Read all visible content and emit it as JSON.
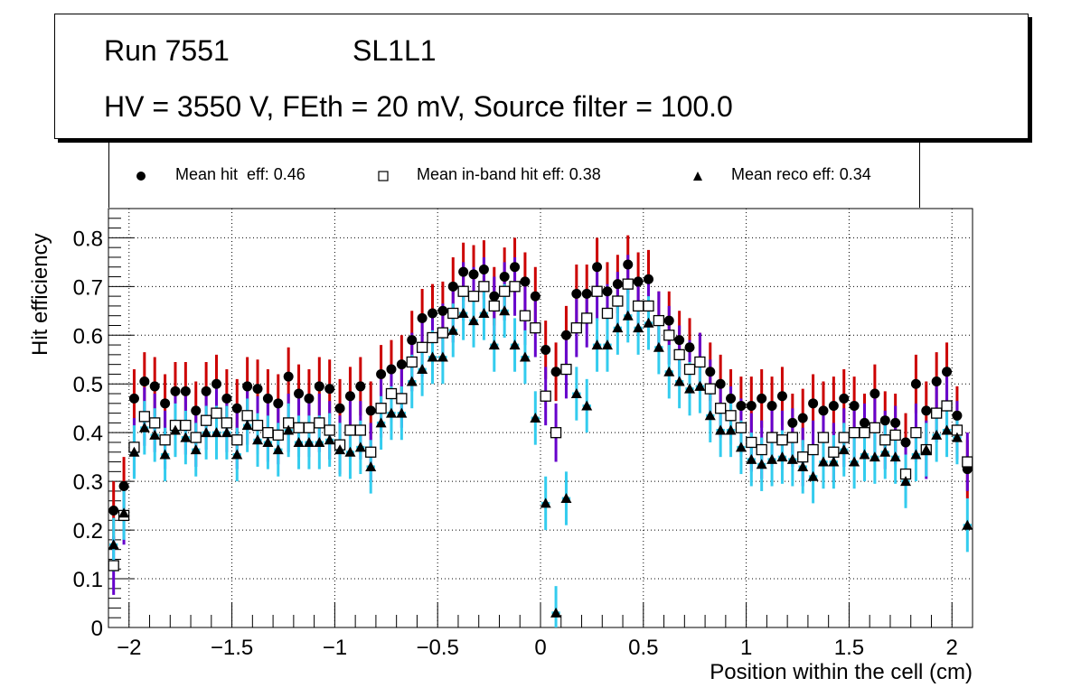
{
  "title": {
    "run": "Run 7551",
    "layer": "SL1L1",
    "conditions": "HV = 3550 V, FEth = 20 mV, Source filter = 100.0"
  },
  "legend": [
    {
      "marker": "filled-circle",
      "label": "Mean hit  eff: 0.46"
    },
    {
      "marker": "open-square",
      "label": "Mean in-band hit eff: 0.38"
    },
    {
      "marker": "filled-triangle",
      "label": "Mean reco eff: 0.34"
    }
  ],
  "chart_data": {
    "type": "scatter",
    "title": "Run 7551 SL1L1 — HV = 3550 V, FEth = 20 mV, Source filter = 100.0",
    "xlabel": "Position within the cell (cm)",
    "ylabel": "Hit efficiency",
    "xlim": [
      -2.1,
      2.1
    ],
    "ylim": [
      0,
      0.86
    ],
    "grid": true,
    "legend_position": "top",
    "x_ticks": [
      "-2",
      "-1.5",
      "-1",
      "-0.5",
      "0",
      "0.5",
      "1",
      "1.5",
      "2"
    ],
    "x_tick_values": [
      -2,
      -1.5,
      -1,
      -0.5,
      0,
      0.5,
      1,
      1.5,
      2
    ],
    "y_ticks": [
      "0",
      "0.1",
      "0.2",
      "0.3",
      "0.4",
      "0.5",
      "0.6",
      "0.7",
      "0.8"
    ],
    "y_tick_values": [
      0,
      0.1,
      0.2,
      0.3,
      0.4,
      0.5,
      0.6,
      0.7,
      0.8
    ],
    "x_start": -2.075,
    "bin_width": 0.05,
    "series": [
      {
        "name": "Mean hit  eff: 0.46",
        "marker": "filled-circle",
        "error_color": "#cc0000",
        "error": 0.06,
        "values": [
          0.24,
          0.29,
          0.47,
          0.505,
          0.495,
          0.46,
          0.485,
          0.485,
          0.445,
          0.485,
          0.5,
          0.47,
          0.45,
          0.495,
          0.49,
          0.47,
          0.46,
          0.515,
          0.48,
          0.47,
          0.495,
          0.49,
          0.45,
          0.475,
          0.495,
          0.445,
          0.52,
          0.53,
          0.54,
          0.59,
          0.635,
          0.645,
          0.65,
          0.7,
          0.73,
          0.725,
          0.735,
          0.68,
          0.72,
          0.74,
          0.71,
          0.68,
          0.57,
          0.525,
          0.6,
          0.685,
          0.685,
          0.74,
          0.69,
          0.705,
          0.745,
          0.71,
          0.715,
          0.63,
          0.63,
          0.59,
          0.575,
          0.545,
          0.525,
          0.5,
          0.47,
          0.455,
          0.455,
          0.47,
          0.455,
          0.475,
          0.42,
          0.43,
          0.46,
          0.445,
          0.455,
          0.47,
          0.455,
          0.42,
          0.48,
          0.425,
          0.42,
          0.38,
          0.5,
          0.445,
          0.505,
          0.525,
          0.435,
          0.325
        ]
      },
      {
        "name": "Mean in-band hit eff: 0.38",
        "marker": "open-square",
        "error_color": "#6600cc",
        "error": 0.06,
        "values": [
          0.127,
          0.23,
          0.37,
          0.433,
          0.42,
          0.385,
          0.415,
          0.415,
          0.39,
          0.425,
          0.44,
          0.42,
          0.385,
          0.435,
          0.415,
          0.4,
          0.395,
          0.42,
          0.41,
          0.41,
          0.42,
          0.405,
          0.375,
          0.405,
          0.405,
          0.36,
          0.45,
          0.48,
          0.47,
          0.545,
          0.575,
          0.595,
          0.605,
          0.645,
          0.69,
          0.68,
          0.7,
          0.66,
          0.69,
          0.7,
          0.64,
          0.615,
          0.475,
          0.4,
          0.53,
          0.615,
          0.635,
          0.69,
          0.645,
          0.67,
          0.705,
          0.66,
          0.66,
          0.63,
          0.6,
          0.56,
          0.53,
          0.545,
          0.49,
          0.45,
          0.435,
          0.41,
          0.38,
          0.365,
          0.39,
          0.385,
          0.39,
          0.35,
          0.365,
          0.39,
          0.36,
          0.39,
          0.4,
          0.4,
          0.41,
          0.385,
          0.395,
          0.315,
          0.4,
          0.365,
          0.44,
          0.455,
          0.405,
          0.34
        ]
      },
      {
        "name": "Mean reco eff: 0.34",
        "marker": "filled-triangle",
        "error_color": "#33ccee",
        "error": 0.055,
        "values": [
          0.17,
          0.235,
          0.36,
          0.41,
          0.395,
          0.355,
          0.405,
          0.39,
          0.365,
          0.4,
          0.4,
          0.4,
          0.355,
          0.415,
          0.385,
          0.38,
          0.365,
          0.405,
          0.38,
          0.38,
          0.38,
          0.385,
          0.365,
          0.36,
          0.37,
          0.33,
          0.42,
          0.44,
          0.44,
          0.505,
          0.53,
          0.555,
          0.555,
          0.61,
          0.645,
          0.63,
          0.645,
          0.58,
          0.65,
          0.58,
          0.555,
          0.43,
          0.255,
          0.03,
          0.265,
          0.48,
          0.455,
          0.58,
          0.58,
          0.615,
          0.64,
          0.615,
          0.625,
          0.575,
          0.525,
          0.505,
          0.49,
          0.495,
          0.435,
          0.405,
          0.405,
          0.37,
          0.345,
          0.335,
          0.345,
          0.35,
          0.345,
          0.33,
          0.31,
          0.34,
          0.34,
          0.365,
          0.34,
          0.355,
          0.35,
          0.36,
          0.35,
          0.3,
          0.355,
          0.365,
          0.395,
          0.405,
          0.39,
          0.21
        ]
      }
    ]
  }
}
